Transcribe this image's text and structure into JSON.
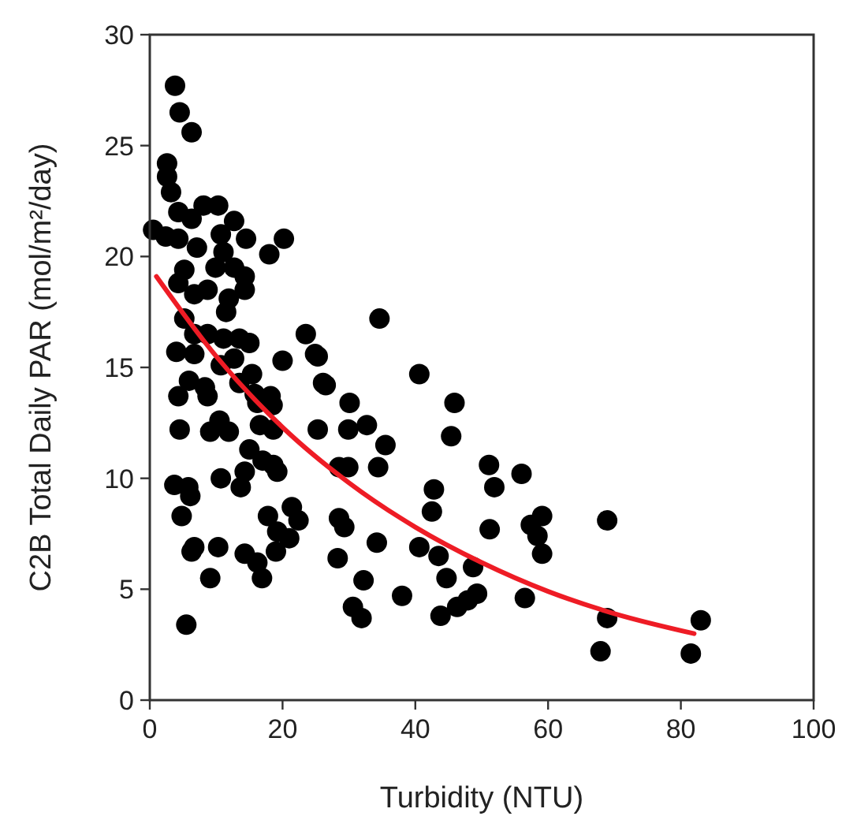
{
  "chart_data": {
    "type": "scatter",
    "xlabel": "Turbidity (NTU)",
    "ylabel": "C2B Total Daily PAR (mol/m²/day)",
    "xlim": [
      0,
      100
    ],
    "xticks": [
      0,
      20,
      40,
      60,
      80,
      100
    ],
    "ylim": [
      0,
      30
    ],
    "yticks": [
      0,
      5,
      10,
      15,
      20,
      25,
      30
    ],
    "grid": false,
    "series": [
      {
        "color": "#000000",
        "marker": "circle",
        "x": [
          3.8,
          4.5,
          6.3,
          2.6,
          2.6,
          3.2,
          4.3,
          6.3,
          8.1,
          10.3,
          12.7,
          0.5,
          2.4,
          4.3,
          7.1,
          10.7,
          14.5,
          20.2,
          18,
          11.1,
          9.9,
          5.2,
          12.7,
          14.3,
          14.3,
          4.3,
          6.7,
          8.7,
          11.9,
          11.5,
          5.2,
          6.7,
          8.7,
          11.1,
          13.5,
          15,
          23.5,
          4,
          6.7,
          20,
          24.9,
          10.7,
          12.7,
          15.4,
          26.1,
          5.9,
          8.3,
          13.5,
          4.3,
          15.8,
          18.2,
          8.7,
          16.2,
          18.5,
          4.5,
          9.1,
          10.5,
          11.9,
          16.6,
          18.6,
          15,
          17,
          18.6,
          19.2,
          14.3,
          10.7,
          13.7,
          3.7,
          5.8,
          6.1,
          4.8,
          17.8,
          21.4,
          22.4,
          19.2,
          21,
          19,
          6.7,
          6.3,
          10.3,
          14.3,
          16.2,
          16.9,
          9.1,
          5.5,
          34.6,
          25.3,
          40.6,
          26.5,
          30.1,
          45.9,
          25.3,
          29.9,
          32.7,
          35.5,
          45.4,
          28.5,
          29.9,
          34.4,
          51.1,
          56,
          51.9,
          42.8,
          42.5,
          28.5,
          29.3,
          59.1,
          57.4,
          58.4,
          59.1,
          51.2,
          34.2,
          40.6,
          43.5,
          28.3,
          48.7,
          44.7,
          32.2,
          38,
          49.3,
          47.9,
          46.3,
          56.5,
          30.6,
          31.9,
          43.8,
          68.9,
          68.9,
          67.9,
          83,
          81.5
        ],
        "values": [
          27.7,
          26.5,
          25.6,
          24.2,
          23.6,
          22.9,
          22,
          21.7,
          22.3,
          22.3,
          21.6,
          21.2,
          20.9,
          20.8,
          20.4,
          21,
          20.8,
          20.8,
          20.1,
          20.2,
          19.5,
          19.4,
          19.5,
          19.1,
          18.5,
          18.8,
          18.3,
          18.5,
          18.1,
          17.5,
          17.2,
          16.5,
          16.5,
          16.3,
          16.3,
          16.1,
          16.5,
          15.7,
          15.6,
          15.3,
          15.6,
          15.1,
          15.4,
          14.7,
          14.3,
          14.4,
          14.1,
          14.3,
          13.7,
          13.8,
          13.7,
          13.7,
          13.4,
          13.3,
          12.2,
          12.1,
          12.6,
          12.1,
          12.4,
          12.2,
          11.3,
          10.8,
          10.6,
          10.3,
          10.3,
          10,
          9.6,
          9.7,
          9.6,
          9.2,
          8.3,
          8.3,
          8.7,
          8.1,
          7.6,
          7.3,
          6.7,
          6.9,
          6.7,
          6.9,
          6.6,
          6.2,
          5.5,
          5.5,
          3.4,
          17.2,
          15.5,
          14.7,
          14.2,
          13.4,
          13.4,
          12.2,
          12.2,
          12.4,
          11.5,
          11.9,
          10.5,
          10.5,
          10.5,
          10.6,
          10.2,
          9.6,
          9.5,
          8.5,
          8.2,
          7.8,
          8.3,
          7.9,
          7.4,
          6.6,
          7.7,
          7.1,
          6.9,
          6.5,
          6.4,
          6,
          5.5,
          5.4,
          4.7,
          4.8,
          4.5,
          4.2,
          4.6,
          4.2,
          3.7,
          3.8,
          8.1,
          3.7,
          2.2,
          3.6,
          2.1
        ]
      },
      {
        "type": "line",
        "color": "#ee1c25",
        "marker": "none",
        "line_style": "solid",
        "x": [
          1,
          10,
          20,
          30,
          40,
          50,
          60,
          70,
          82
        ],
        "values": [
          19.1,
          15.5,
          12.3,
          9.8,
          7.8,
          6.2,
          4.9,
          3.9,
          3.0
        ]
      }
    ]
  }
}
